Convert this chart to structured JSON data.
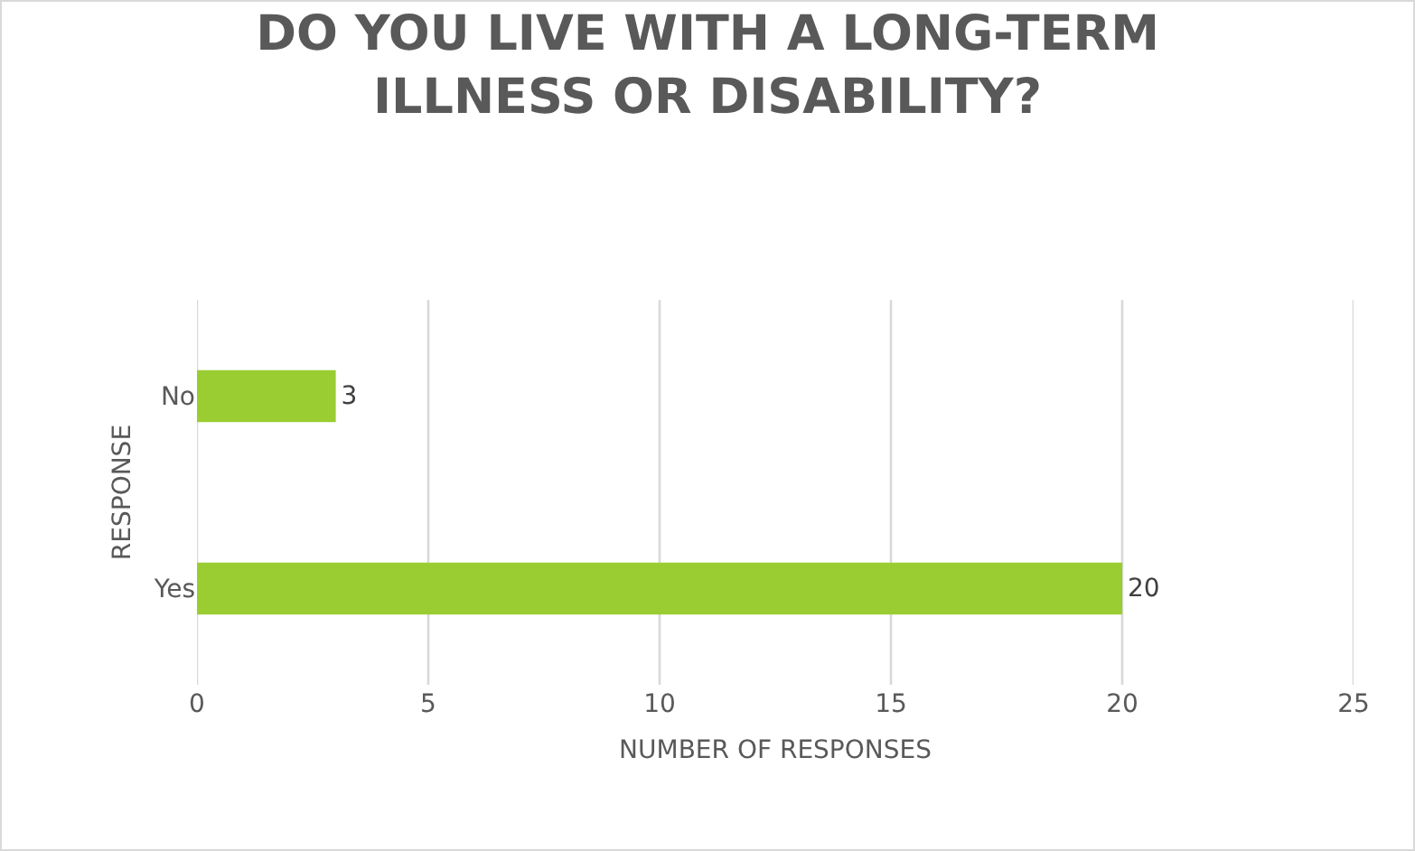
{
  "chart_data": {
    "type": "bar",
    "orientation": "horizontal",
    "title": "DO YOU LIVE WITH A LONG-TERM ILLNESS OR DISABILITY?",
    "xlabel": "NUMBER OF RESPONSES",
    "ylabel": "RESPONSE",
    "categories": [
      "No",
      "Yes"
    ],
    "values": [
      3,
      20
    ],
    "color": "#9acd32",
    "xlim": [
      0,
      25
    ],
    "xticks": [
      0,
      5,
      10,
      15,
      20,
      25
    ],
    "grid": "x",
    "data_labels": true
  }
}
